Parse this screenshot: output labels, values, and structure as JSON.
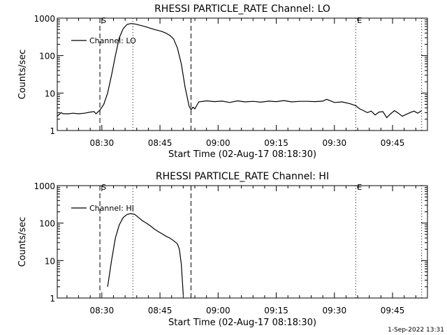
{
  "footer": {
    "timestamp": "1-Sep-2022 13:31"
  },
  "chart_data": [
    {
      "type": "line",
      "title": "RHESSI PARTICLE_RATE Channel: LO",
      "xlabel": "Start Time (02-Aug-17 08:18:30)",
      "ylabel": "Counts/sec",
      "yscale": "log",
      "ylim": [
        1,
        1000
      ],
      "xlim": [
        "08:18:30",
        "09:54:00"
      ],
      "x_ticks": [
        "08:30",
        "08:45",
        "09:00",
        "09:15",
        "09:30",
        "09:45"
      ],
      "y_ticks": [
        "1",
        "10",
        "100",
        "1000"
      ],
      "legend": {
        "position": "top-left",
        "entries": [
          "Channel: LO"
        ]
      },
      "markers": [
        {
          "label": "S",
          "time": "08:29:30",
          "style": "dashed"
        },
        {
          "label": "",
          "time": "08:38:00",
          "style": "dotted"
        },
        {
          "label": "",
          "time": "08:53:00",
          "style": "dashed"
        },
        {
          "label": "E",
          "time": "09:35:30",
          "style": "dotted"
        },
        {
          "label": "",
          "time": "09:52:30",
          "style": "dotted"
        }
      ],
      "series": [
        {
          "name": "Channel: LO",
          "x": [
            "08:18:30",
            "08:19:30",
            "08:20:00",
            "08:21:30",
            "08:22:30",
            "08:24:00",
            "08:25:30",
            "08:27:00",
            "08:28:00",
            "08:28:30",
            "08:29:30",
            "08:30:30",
            "08:31:30",
            "08:32:30",
            "08:33:30",
            "08:34:30",
            "08:35:30",
            "08:36:30",
            "08:37:30",
            "08:38:30",
            "08:39:30",
            "08:40:30",
            "08:41:30",
            "08:42:30",
            "08:43:30",
            "08:44:30",
            "08:45:30",
            "08:46:30",
            "08:47:30",
            "08:48:30",
            "08:49:30",
            "08:50:30",
            "08:51:30",
            "08:52:00",
            "08:52:30",
            "08:53:00",
            "08:53:30",
            "08:54:00",
            "08:55:00",
            "08:57:00",
            "08:59:00",
            "09:01:00",
            "09:03:00",
            "09:05:00",
            "09:07:00",
            "09:09:00",
            "09:11:00",
            "09:13:00",
            "09:15:00",
            "09:17:00",
            "09:19:00",
            "09:21:00",
            "09:23:00",
            "09:25:00",
            "09:27:00",
            "09:28:00",
            "09:30:00",
            "09:32:00",
            "09:34:00",
            "09:35:30",
            "09:36:30",
            "09:37:30",
            "09:38:30",
            "09:39:30",
            "09:40:30",
            "09:41:30",
            "09:42:30",
            "09:43:30",
            "09:44:30",
            "09:45:30",
            "09:46:30",
            "09:47:30",
            "09:48:30",
            "09:49:30",
            "09:50:30",
            "09:51:30",
            "09:52:30"
          ],
          "values": [
            2.4,
            3.0,
            2.8,
            2.8,
            2.9,
            2.8,
            2.9,
            3.1,
            3.2,
            2.8,
            3.5,
            5,
            10,
            30,
            100,
            300,
            520,
            680,
            720,
            700,
            660,
            620,
            580,
            540,
            500,
            470,
            440,
            400,
            350,
            280,
            160,
            60,
            14,
            8,
            4.5,
            3.6,
            4.2,
            3.8,
            5.8,
            6.2,
            5.9,
            6.1,
            5.6,
            6.2,
            5.8,
            6.0,
            5.7,
            6.1,
            5.9,
            6.3,
            5.8,
            6.0,
            6.0,
            5.9,
            6.1,
            6.8,
            5.6,
            5.8,
            5.2,
            4.6,
            3.8,
            3.4,
            3.0,
            3.3,
            2.6,
            3.1,
            3.2,
            2.2,
            2.8,
            3.4,
            2.9,
            2.4,
            2.7,
            3.0,
            3.3,
            2.9,
            3.4
          ]
        }
      ]
    },
    {
      "type": "line",
      "title": "RHESSI PARTICLE_RATE Channel: HI",
      "xlabel": "Start Time (02-Aug-17 08:18:30)",
      "ylabel": "Counts/sec",
      "yscale": "log",
      "ylim": [
        1,
        1000
      ],
      "xlim": [
        "08:18:30",
        "09:54:00"
      ],
      "x_ticks": [
        "08:30",
        "08:45",
        "09:00",
        "09:15",
        "09:30",
        "09:45"
      ],
      "y_ticks": [
        "1",
        "10",
        "100",
        "1000"
      ],
      "legend": {
        "position": "top-left",
        "entries": [
          "Channel: HI"
        ]
      },
      "markers": [
        {
          "label": "S",
          "time": "08:29:30",
          "style": "dashed"
        },
        {
          "label": "",
          "time": "08:38:00",
          "style": "dotted"
        },
        {
          "label": "",
          "time": "08:53:00",
          "style": "dashed"
        },
        {
          "label": "E",
          "time": "09:35:30",
          "style": "dotted"
        },
        {
          "label": "",
          "time": "09:52:30",
          "style": "dotted"
        }
      ],
      "series": [
        {
          "name": "Channel: HI",
          "x": [
            "08:31:30",
            "08:32:30",
            "08:33:30",
            "08:34:30",
            "08:35:30",
            "08:36:30",
            "08:37:30",
            "08:38:30",
            "08:39:30",
            "08:40:30",
            "08:41:30",
            "08:42:30",
            "08:43:30",
            "08:44:30",
            "08:45:30",
            "08:46:30",
            "08:47:30",
            "08:48:30",
            "08:49:30",
            "08:50:00",
            "08:50:30",
            "08:51:00"
          ],
          "values": [
            2,
            10,
            40,
            90,
            140,
            170,
            180,
            170,
            140,
            115,
            100,
            85,
            70,
            60,
            52,
            45,
            40,
            34,
            28,
            20,
            8,
            1.2
          ]
        }
      ]
    }
  ]
}
